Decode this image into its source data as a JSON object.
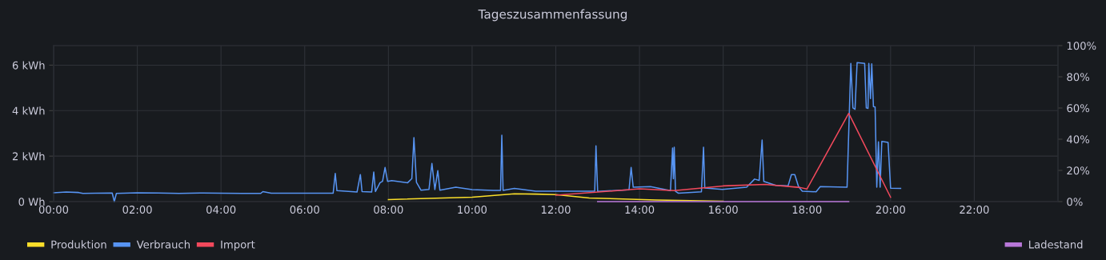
{
  "chart_data": {
    "type": "line",
    "title": "Tageszusammenfassung",
    "grid": true,
    "legend": "bottom",
    "marker": "none",
    "line_style": "solid",
    "xlim": [
      0,
      24
    ],
    "xticks": [
      {
        "value": 0,
        "label": "00:00"
      },
      {
        "value": 2,
        "label": "02:00"
      },
      {
        "value": 4,
        "label": "04:00"
      },
      {
        "value": 6,
        "label": "06:00"
      },
      {
        "value": 8,
        "label": "08:00"
      },
      {
        "value": 10,
        "label": "10:00"
      },
      {
        "value": 12,
        "label": "12:00"
      },
      {
        "value": 14,
        "label": "14:00"
      },
      {
        "value": 16,
        "label": "16:00"
      },
      {
        "value": 18,
        "label": "18:00"
      },
      {
        "value": 20,
        "label": "20:00"
      },
      {
        "value": 22,
        "label": "22:00"
      }
    ],
    "ylim": [
      0,
      6.86
    ],
    "yticks": [
      {
        "value": 0,
        "label": "0 Wh"
      },
      {
        "value": 2,
        "label": "2 kWh"
      },
      {
        "value": 4,
        "label": "4 kWh"
      },
      {
        "value": 6,
        "label": "6 kWh"
      }
    ],
    "y2lim": [
      0,
      100
    ],
    "y2ticks": [
      {
        "value": 0,
        "label": "0%"
      },
      {
        "value": 20,
        "label": "20%"
      },
      {
        "value": 40,
        "label": "40%"
      },
      {
        "value": 60,
        "label": "60%"
      },
      {
        "value": 80,
        "label": "80%"
      },
      {
        "value": 100,
        "label": "100%"
      }
    ],
    "series": [
      {
        "name": "Produktion",
        "color": "#fade2a",
        "x": [
          8.0,
          10.0,
          11.01,
          11.52,
          12.0,
          12.8,
          14.4,
          16.0
        ],
        "values": [
          0.09,
          0.19,
          0.34,
          0.33,
          0.31,
          0.16,
          0.07,
          0.02
        ]
      },
      {
        "name": "Verbrauch",
        "color": "#5794f2",
        "x": [
          0,
          0.3,
          0.6,
          0.7,
          1.0,
          1.4,
          1.45,
          1.5,
          2.0,
          2.5,
          3.0,
          3.5,
          4.0,
          4.5,
          4.95,
          5.0,
          5.2,
          5.41,
          6.68,
          6.73,
          6.77,
          7.25,
          7.33,
          7.37,
          7.6,
          7.65,
          7.69,
          7.8,
          7.86,
          7.92,
          7.98,
          8.08,
          8.46,
          8.56,
          8.61,
          8.67,
          8.78,
          8.97,
          9.04,
          9.11,
          9.18,
          9.23,
          9.61,
          10.0,
          10.5,
          10.68,
          10.71,
          10.74,
          11.01,
          11.52,
          12.93,
          12.96,
          13.0,
          13.75,
          13.8,
          13.85,
          14.26,
          14.74,
          14.79,
          14.81,
          14.83,
          14.86,
          14.93,
          15.48,
          15.53,
          15.56,
          15.98,
          16.56,
          16.75,
          16.86,
          16.93,
          16.97,
          17.26,
          17.55,
          17.63,
          17.71,
          17.8,
          17.89,
          18.22,
          18.32,
          18.96,
          19.05,
          19.1,
          19.15,
          19.2,
          19.38,
          19.42,
          19.46,
          19.48,
          19.52,
          19.55,
          19.59,
          19.63,
          19.67,
          19.71,
          19.75,
          19.79,
          19.94,
          20.0,
          20.24
        ],
        "values": [
          0.39,
          0.42,
          0.4,
          0.36,
          0.37,
          0.38,
          0.0,
          0.36,
          0.39,
          0.38,
          0.36,
          0.38,
          0.37,
          0.36,
          0.36,
          0.44,
          0.37,
          0.37,
          0.37,
          1.24,
          0.48,
          0.42,
          1.19,
          0.44,
          0.42,
          1.3,
          0.44,
          0.83,
          0.89,
          1.5,
          0.89,
          0.92,
          0.83,
          1.01,
          2.81,
          0.85,
          0.5,
          0.54,
          1.68,
          0.53,
          1.36,
          0.5,
          0.63,
          0.53,
          0.49,
          0.49,
          2.92,
          0.49,
          0.58,
          0.46,
          0.46,
          2.45,
          0.45,
          0.52,
          1.5,
          0.63,
          0.66,
          0.48,
          2.36,
          1.0,
          2.39,
          0.45,
          0.37,
          0.43,
          2.39,
          0.6,
          0.54,
          0.63,
          0.99,
          0.93,
          2.71,
          0.89,
          0.71,
          0.69,
          1.19,
          1.19,
          0.66,
          0.46,
          0.43,
          0.66,
          0.63,
          6.08,
          4.12,
          4.06,
          6.11,
          6.08,
          4.12,
          4.1,
          6.08,
          4.53,
          6.06,
          4.18,
          4.16,
          0.63,
          2.63,
          0.63,
          2.65,
          2.6,
          0.59,
          0.58
        ]
      },
      {
        "name": "Import",
        "color": "#f2495c",
        "x": [
          12.0,
          14.0,
          14.83,
          16.0,
          17.0,
          17.84,
          18.0,
          19.0,
          20.0
        ],
        "values": [
          0.28,
          0.56,
          0.48,
          0.69,
          0.76,
          0.62,
          0.55,
          3.88,
          0.19
        ]
      },
      {
        "name": "Ladestand",
        "color": "#b877d9",
        "axis": "y2",
        "x": [
          13.0,
          19.0
        ],
        "values": [
          0,
          0
        ]
      }
    ]
  }
}
